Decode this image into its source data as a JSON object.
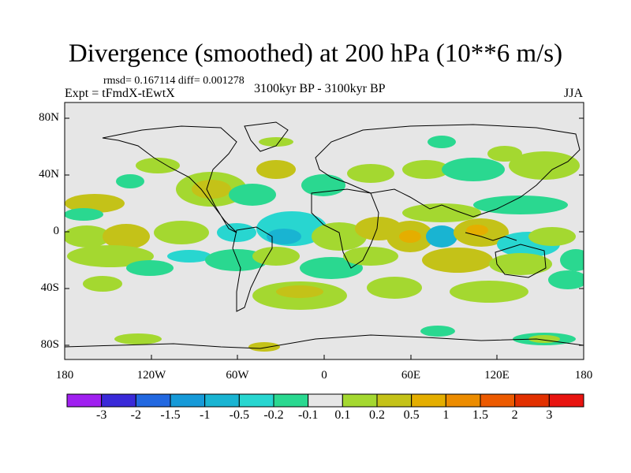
{
  "title": "Divergence (smoothed) at 200 hPa (10**6 m/s)",
  "stats": "rmsd= 0.167114  diff= 0.001278",
  "experiment": "Expt = tFmdX-tEwtX",
  "period": "3100kyr BP - 3100kyr BP",
  "season": "JJA",
  "map": {
    "projection": "cylindrical-equidistant",
    "lat_ticks": [
      "80N",
      "40N",
      "0",
      "40S",
      "80S"
    ],
    "lon_ticks": [
      "180",
      "120W",
      "60W",
      "0",
      "60E",
      "120E",
      "180"
    ],
    "missing_color": "#e6e6e6"
  },
  "colorbar": {
    "labels": [
      "-3",
      "-2",
      "-1.5",
      "-1",
      "-0.5",
      "-0.2",
      "-0.1",
      "0.1",
      "0.2",
      "0.5",
      "1",
      "1.5",
      "2",
      "3"
    ],
    "colors": [
      "#a020f0",
      "#3a2ad8",
      "#2268e0",
      "#169ad8",
      "#19b4d2",
      "#28d6d0",
      "#2ad890",
      "#e6e6e6",
      "#a4d830",
      "#c4c218",
      "#e4ae00",
      "#ec8c00",
      "#ec5a00",
      "#e23000",
      "#e81410"
    ]
  }
}
